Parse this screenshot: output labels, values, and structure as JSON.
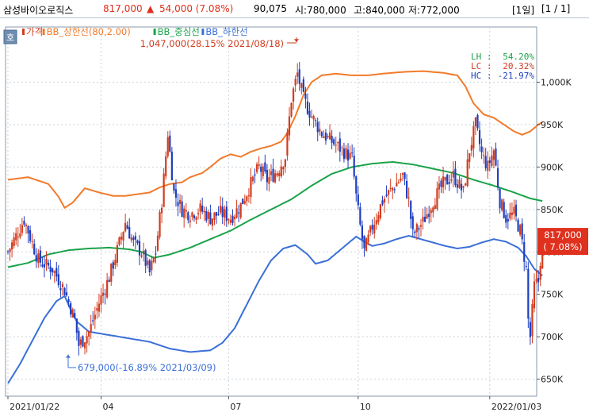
{
  "header": {
    "name": "삼성바이오로직스",
    "price": "817,000",
    "change_arrow": "▲",
    "change": "54,000 (7.08%)",
    "volume": "90,075",
    "open": "시:780,000",
    "high": "고:840,000",
    "low": "저:772,000",
    "period": "[1일]",
    "page": "[1 / 1]"
  },
  "toolbar": {
    "button_label": "호"
  },
  "colors": {
    "up": "#d23c1e",
    "down": "#1f3fbf",
    "upper_band": "#f27a2a",
    "middle_band": "#1aa34a",
    "lower_band": "#3a6fd8",
    "price_badge": "#e0301e"
  },
  "chart_data": {
    "type": "candlestick",
    "legend": [
      {
        "key": "price",
        "label": "가격",
        "color": "#d23c1e"
      },
      {
        "key": "upper",
        "label": "BB_상한선(80,2.00)",
        "color": "#f27a2a"
      },
      {
        "key": "middle",
        "label": "BB_중심선",
        "color": "#1aa34a"
      },
      {
        "key": "lower",
        "label": "BB_하한선",
        "color": "#3a6fd8"
      }
    ],
    "stats": [
      {
        "label": "LH : ",
        "value": "54.20%",
        "color": "#1aa34a"
      },
      {
        "label": "LC : ",
        "value": "20.32%",
        "color": "#d23c1e"
      },
      {
        "label": "HC : ",
        "value": "-21.97%",
        "color": "#1f3fbf"
      }
    ],
    "annotations": [
      {
        "text": "1,047,000(28.15% 2021/08/18)",
        "price": 1047000
      },
      {
        "text": "679,000(-16.89% 2021/03/09)",
        "price": 679000
      }
    ],
    "current_price": {
      "price": 817000,
      "label": "817,000",
      "pct": "( 7.08%)"
    },
    "y_ticks": [
      {
        "value": 650000,
        "label": "650K"
      },
      {
        "value": 700000,
        "label": "700K"
      },
      {
        "value": 750000,
        "label": "750K"
      },
      {
        "value": 800000,
        "label": "800K"
      },
      {
        "value": 850000,
        "label": "850K"
      },
      {
        "value": 900000,
        "label": "900K"
      },
      {
        "value": 950000,
        "label": "950K"
      },
      {
        "value": 1000000,
        "label": "1,000K"
      }
    ],
    "ylim": [
      630000,
      1065000
    ],
    "x_ticks": [
      {
        "index": 0,
        "label": "2021/01/22"
      },
      {
        "index": 46,
        "label": "04"
      },
      {
        "index": 109,
        "label": "07"
      },
      {
        "index": 173,
        "label": "10"
      },
      {
        "index": 238,
        "label": "2022/01/03"
      }
    ],
    "x_count": 260,
    "price_path": [
      [
        0,
        800000
      ],
      [
        8,
        838000
      ],
      [
        15,
        790000
      ],
      [
        22,
        780000
      ],
      [
        28,
        755000
      ],
      [
        33,
        720000
      ],
      [
        35,
        690000
      ],
      [
        40,
        705000
      ],
      [
        45,
        740000
      ],
      [
        50,
        770000
      ],
      [
        55,
        810000
      ],
      [
        58,
        835000
      ],
      [
        62,
        810000
      ],
      [
        66,
        800000
      ],
      [
        70,
        775000
      ],
      [
        73,
        800000
      ],
      [
        76,
        860000
      ],
      [
        79,
        940000
      ],
      [
        82,
        870000
      ],
      [
        86,
        850000
      ],
      [
        90,
        845000
      ],
      [
        95,
        850000
      ],
      [
        100,
        840000
      ],
      [
        105,
        846000
      ],
      [
        110,
        840000
      ],
      [
        115,
        855000
      ],
      [
        120,
        880000
      ],
      [
        124,
        900000
      ],
      [
        128,
        885000
      ],
      [
        133,
        895000
      ],
      [
        137,
        912000
      ],
      [
        140,
        980000
      ],
      [
        143,
        1010000
      ],
      [
        146,
        980000
      ],
      [
        150,
        960000
      ],
      [
        155,
        940000
      ],
      [
        160,
        930000
      ],
      [
        165,
        920000
      ],
      [
        170,
        910000
      ],
      [
        172,
        865000
      ],
      [
        174,
        830000
      ],
      [
        176,
        800000
      ],
      [
        180,
        830000
      ],
      [
        185,
        860000
      ],
      [
        190,
        875000
      ],
      [
        195,
        890000
      ],
      [
        198,
        860000
      ],
      [
        200,
        820000
      ],
      [
        205,
        835000
      ],
      [
        210,
        860000
      ],
      [
        215,
        880000
      ],
      [
        220,
        890000
      ],
      [
        225,
        870000
      ],
      [
        228,
        920000
      ],
      [
        231,
        950000
      ],
      [
        234,
        915000
      ],
      [
        237,
        900000
      ],
      [
        240,
        920000
      ],
      [
        243,
        860000
      ],
      [
        246,
        840000
      ],
      [
        250,
        845000
      ],
      [
        253,
        825000
      ],
      [
        256,
        780000
      ],
      [
        257,
        720000
      ],
      [
        258,
        700000
      ],
      [
        260,
        760000
      ],
      [
        262,
        765000
      ],
      [
        264,
        817000
      ]
    ],
    "upper_band_path": [
      [
        0,
        885000
      ],
      [
        10,
        888000
      ],
      [
        20,
        880000
      ],
      [
        25,
        865000
      ],
      [
        28,
        852000
      ],
      [
        32,
        858000
      ],
      [
        38,
        875000
      ],
      [
        45,
        870000
      ],
      [
        52,
        866000
      ],
      [
        58,
        866000
      ],
      [
        64,
        868000
      ],
      [
        70,
        870000
      ],
      [
        75,
        876000
      ],
      [
        80,
        880000
      ],
      [
        86,
        882000
      ],
      [
        90,
        888000
      ],
      [
        96,
        893000
      ],
      [
        100,
        900000
      ],
      [
        105,
        910000
      ],
      [
        110,
        915000
      ],
      [
        115,
        912000
      ],
      [
        120,
        918000
      ],
      [
        125,
        922000
      ],
      [
        130,
        925000
      ],
      [
        135,
        930000
      ],
      [
        138,
        940000
      ],
      [
        142,
        960000
      ],
      [
        146,
        985000
      ],
      [
        150,
        1000000
      ],
      [
        155,
        1008000
      ],
      [
        162,
        1010000
      ],
      [
        170,
        1008000
      ],
      [
        178,
        1008000
      ],
      [
        185,
        1010000
      ],
      [
        195,
        1012000
      ],
      [
        205,
        1013000
      ],
      [
        215,
        1011000
      ],
      [
        222,
        1008000
      ],
      [
        226,
        995000
      ],
      [
        230,
        975000
      ],
      [
        235,
        962000
      ],
      [
        240,
        958000
      ],
      [
        245,
        950000
      ],
      [
        250,
        942000
      ],
      [
        254,
        938000
      ],
      [
        258,
        942000
      ],
      [
        262,
        950000
      ],
      [
        264,
        953000
      ]
    ],
    "middle_band_path": [
      [
        0,
        782000
      ],
      [
        10,
        787000
      ],
      [
        20,
        797000
      ],
      [
        30,
        802000
      ],
      [
        40,
        804000
      ],
      [
        50,
        805000
      ],
      [
        60,
        803000
      ],
      [
        66,
        800000
      ],
      [
        72,
        793000
      ],
      [
        80,
        797000
      ],
      [
        90,
        805000
      ],
      [
        100,
        815000
      ],
      [
        110,
        825000
      ],
      [
        120,
        838000
      ],
      [
        130,
        850000
      ],
      [
        140,
        862000
      ],
      [
        150,
        878000
      ],
      [
        160,
        892000
      ],
      [
        170,
        900000
      ],
      [
        180,
        904000
      ],
      [
        190,
        906000
      ],
      [
        200,
        903000
      ],
      [
        210,
        898000
      ],
      [
        220,
        893000
      ],
      [
        230,
        885000
      ],
      [
        240,
        878000
      ],
      [
        250,
        870000
      ],
      [
        258,
        863000
      ],
      [
        264,
        860000
      ]
    ],
    "lower_band_path": [
      [
        0,
        645000
      ],
      [
        6,
        668000
      ],
      [
        12,
        695000
      ],
      [
        18,
        722000
      ],
      [
        24,
        742000
      ],
      [
        28,
        748000
      ],
      [
        31,
        732000
      ],
      [
        34,
        718000
      ],
      [
        40,
        706000
      ],
      [
        50,
        702000
      ],
      [
        60,
        698000
      ],
      [
        70,
        694000
      ],
      [
        80,
        686000
      ],
      [
        90,
        682000
      ],
      [
        100,
        684000
      ],
      [
        106,
        693000
      ],
      [
        112,
        710000
      ],
      [
        118,
        738000
      ],
      [
        124,
        766000
      ],
      [
        130,
        790000
      ],
      [
        136,
        804000
      ],
      [
        142,
        808000
      ],
      [
        148,
        797000
      ],
      [
        152,
        786000
      ],
      [
        158,
        790000
      ],
      [
        163,
        800000
      ],
      [
        168,
        810000
      ],
      [
        172,
        818000
      ],
      [
        176,
        812000
      ],
      [
        180,
        807000
      ],
      [
        186,
        810000
      ],
      [
        192,
        815000
      ],
      [
        198,
        819000
      ],
      [
        204,
        815000
      ],
      [
        210,
        811000
      ],
      [
        216,
        807000
      ],
      [
        222,
        804000
      ],
      [
        228,
        806000
      ],
      [
        234,
        811000
      ],
      [
        240,
        815000
      ],
      [
        246,
        812000
      ],
      [
        252,
        805000
      ],
      [
        256,
        795000
      ],
      [
        260,
        780000
      ],
      [
        264,
        772000
      ]
    ]
  }
}
